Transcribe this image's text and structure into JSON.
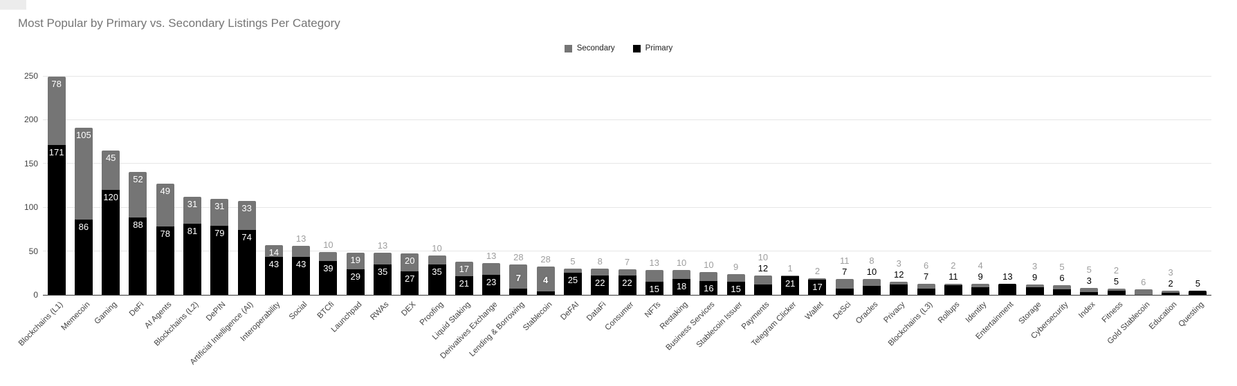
{
  "title": "Most Popular by Primary vs. Secondary Listings Per Category",
  "legend": [
    {
      "label": "Secondary",
      "color": "#757575"
    },
    {
      "label": "Primary",
      "color": "#000000"
    }
  ],
  "chart_data": {
    "type": "bar",
    "stacked": true,
    "title": "Most Popular by Primary vs. Secondary Listings Per Category",
    "xlabel": "",
    "ylabel": "",
    "ylim": [
      0,
      250
    ],
    "yticks": [
      0,
      50,
      100,
      150,
      200,
      250
    ],
    "grid": true,
    "legend_position": "top-center",
    "colors": {
      "primary": "#000000",
      "secondary": "#757575",
      "outside_secondary_label": "#9e9e9e",
      "outside_primary_label": "#000000",
      "inside_label": "#ffffff",
      "gridline": "#e6e6e6",
      "axis_line": "#333333",
      "axis_text": "#424242",
      "title_text": "#757575"
    },
    "categories": [
      "Blockchains (L1)",
      "Memecoin",
      "Gaming",
      "DeFi",
      "AI Agents",
      "Blockchains (L2)",
      "DePIN",
      "Artificial Intelligence (AI)",
      "Interoperability",
      "Social",
      "BTCfi",
      "Launchpad",
      "RWAs",
      "DEX",
      "Proofing",
      "Liquid Staking",
      "Derivatives Exchange",
      "Lending & Borrowing",
      "Stablecoin",
      "DeFAI",
      "DataFi",
      "Consumer",
      "NFTs",
      "Restaking",
      "Business Services",
      "Stablecoin Issuer",
      "Payments",
      "Telegram Clicker",
      "Wallet",
      "DeSci",
      "Oracles",
      "Privacy",
      "Blockchains (L3)",
      "Rollups",
      "Identity",
      "Entertainment",
      "Storage",
      "Cybersecurity",
      "Index",
      "Fitness",
      "Gold Stablecoin",
      "Education",
      "Questing"
    ],
    "series": [
      {
        "name": "Secondary",
        "color": "#757575",
        "values": [
          78,
          105,
          45,
          52,
          49,
          31,
          31,
          33,
          14,
          13,
          10,
          19,
          13,
          20,
          10,
          17,
          13,
          28,
          28,
          5,
          8,
          7,
          13,
          10,
          10,
          9,
          10,
          1,
          2,
          11,
          8,
          3,
          6,
          2,
          4,
          0,
          3,
          5,
          5,
          2,
          6,
          3,
          0
        ]
      },
      {
        "name": "Primary",
        "color": "#000000",
        "values": [
          171,
          86,
          120,
          88,
          78,
          81,
          79,
          74,
          43,
          43,
          39,
          29,
          35,
          27,
          35,
          21,
          23,
          7,
          4,
          25,
          22,
          22,
          15,
          18,
          16,
          15,
          12,
          21,
          17,
          7,
          10,
          12,
          7,
          11,
          9,
          13,
          9,
          6,
          3,
          5,
          0,
          2,
          5
        ]
      }
    ],
    "label_positions": {
      "primary": [
        "in",
        "in",
        "in",
        "in",
        "in",
        "in",
        "in",
        "in",
        "in",
        "in",
        "in",
        "in",
        "in",
        "in",
        "in",
        "in",
        "in",
        "gray",
        "gray",
        "in",
        "in",
        "in",
        "in",
        "in",
        "in",
        "in",
        "out",
        "in",
        "in",
        "out",
        "out",
        "out",
        "out",
        "out",
        "out",
        "out",
        "out",
        "out",
        "out",
        "out",
        "none",
        "out",
        "out"
      ],
      "secondary": [
        "in",
        "in",
        "in",
        "in",
        "in",
        "in",
        "in",
        "in",
        "in",
        "out",
        "out",
        "in",
        "out",
        "in",
        "out",
        "in",
        "out",
        "out",
        "out",
        "out",
        "out",
        "out",
        "out",
        "out",
        "out",
        "out",
        "out",
        "out",
        "out",
        "out",
        "out",
        "out",
        "out",
        "out",
        "out",
        "none",
        "out",
        "out",
        "out",
        "out",
        "out",
        "out",
        "none"
      ]
    }
  }
}
